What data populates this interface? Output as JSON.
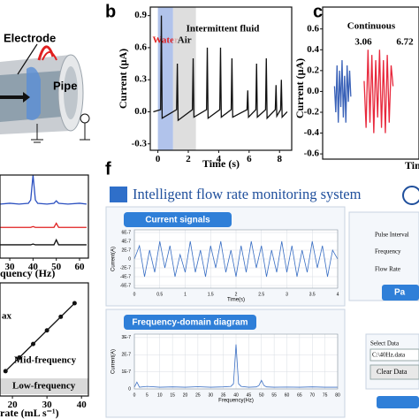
{
  "diagram": {
    "labels": [
      "Electrode",
      "Pipe"
    ]
  },
  "app": {
    "panel": "f",
    "title": "Intelligent flow rate monitoring system",
    "fields": [
      "Pulse Interval",
      "Frequency",
      "Flow Rate"
    ],
    "button": "Pa",
    "select_label": "Select Data",
    "file": "C:\\40Hz.data",
    "clear": "Clear Data",
    "headers": [
      "Current signals",
      "Frequency-domain diagram"
    ]
  },
  "chart_data": [
    {
      "type": "line",
      "panel": "b",
      "title": "Intermittent fluid",
      "xlabel": "Time (s)",
      "ylabel": "Current (μA)",
      "xlim": [
        -0.5,
        8.8
      ],
      "ylim": [
        -0.36,
        0.98
      ],
      "xticks": [
        0,
        2,
        4,
        6,
        8
      ],
      "yticks": [
        0.9,
        0.6,
        0.3,
        {
          "value": 0,
          "label": "0.0"
        },
        -0.3
      ],
      "regions": [
        {
          "label": "Water",
          "range": [
            0,
            1
          ],
          "color": "#9db4e6",
          "text_color": "#e02020"
        },
        {
          "label": "Air",
          "range": [
            1,
            2.5
          ],
          "color": "#d6d6d6",
          "text_color": "#111111"
        }
      ],
      "series": [
        {
          "color": "#111111",
          "x": [
            -0.3,
            0.18,
            0.23,
            0.28,
            1.23,
            1.28,
            1.33,
            2.27,
            2.32,
            2.37,
            3.2,
            3.25,
            3.3,
            4.07,
            4.12,
            4.17,
            4.82,
            4.87,
            4.92,
            5.86,
            5.91,
            5.96,
            6.44,
            6.49,
            6.54,
            7.08,
            7.13,
            7.18,
            7.72,
            7.77,
            7.82,
            8.07,
            8.12,
            8.17,
            8.5
          ],
          "values": [
            0,
            0.02,
            0.9,
            -0.06,
            0.02,
            0.45,
            -0.08,
            0.02,
            0.5,
            -0.05,
            0.02,
            0.6,
            -0.06,
            0.02,
            0.6,
            -0.05,
            0.02,
            0.5,
            -0.05,
            0.02,
            0.2,
            -0.05,
            0.02,
            0.45,
            -0.05,
            0.02,
            0.5,
            -0.06,
            0.02,
            0.25,
            -0.04,
            0.02,
            0.3,
            -0.05,
            0
          ]
        }
      ]
    },
    {
      "type": "line",
      "panel": "c",
      "title": "Continuous",
      "xlabel": "Time",
      "ylabel": "Current (μA)",
      "xlim": [
        0,
        1.3
      ],
      "ylim": [
        -0.65,
        0.81
      ],
      "yticks": [
        0.6,
        0.4,
        0.2,
        {
          "value": 0,
          "label": "0.0"
        },
        -0.2,
        -0.4,
        -0.6
      ],
      "annotations": [
        "3.06",
        "6.72"
      ],
      "series": [
        {
          "color": "#3a62b8",
          "x": [
            0.16,
            0.177,
            0.194,
            0.211,
            0.228,
            0.245,
            0.262,
            0.279,
            0.296,
            0.313,
            0.33,
            0.347,
            0.364,
            0.38
          ],
          "values": [
            0.05,
            -0.2,
            0.25,
            -0.3,
            0.2,
            -0.15,
            0.3,
            -0.25,
            0.15,
            -0.3,
            0.25,
            -0.1,
            0.2,
            -0.05
          ]
        },
        {
          "color": "#e8283c",
          "x": [
            0.56,
            0.586,
            0.612,
            0.638,
            0.664,
            0.69,
            0.716,
            0.742,
            0.768,
            0.794,
            0.82,
            0.846,
            0.872,
            0.898,
            0.924,
            0.95
          ],
          "values": [
            0.1,
            -0.35,
            0.4,
            -0.3,
            0.35,
            -0.4,
            0.3,
            -0.25,
            0.4,
            -0.35,
            0.3,
            -0.4,
            0.35,
            -0.3,
            0.25,
            0.05
          ]
        }
      ]
    },
    {
      "type": "line",
      "xlabel": "quency (Hz)",
      "xlim": [
        25.8,
        63.8
      ],
      "ylim": [
        0,
        10
      ],
      "xticks": [
        30,
        40,
        50,
        60
      ],
      "series": [
        {
          "color": "#2a4fc0",
          "x": [
            26,
            30,
            34,
            38,
            39,
            40,
            41,
            42,
            46,
            49,
            50,
            51,
            55,
            60,
            63
          ],
          "values": [
            6.5,
            6.6,
            6.5,
            6.6,
            7,
            10,
            7,
            6.6,
            6.5,
            6.6,
            6.9,
            6.6,
            6.5,
            6.6,
            6.5
          ]
        },
        {
          "color": "#e02020",
          "x": [
            26,
            30,
            34,
            38,
            39,
            40,
            41,
            42,
            46,
            49,
            50,
            51,
            55,
            60,
            63
          ],
          "values": [
            3.7,
            3.7,
            3.7,
            3.7,
            3.7,
            3.8,
            3.7,
            3.7,
            3.7,
            3.7,
            4.2,
            3.7,
            3.7,
            3.7,
            3.7
          ]
        },
        {
          "color": "#111111",
          "x": [
            26,
            30,
            34,
            38,
            39,
            40,
            41,
            42,
            46,
            49,
            50,
            51,
            55,
            60,
            63
          ],
          "values": [
            1.6,
            1.6,
            1.6,
            1.6,
            1.6,
            1.7,
            1.6,
            1.6,
            1.6,
            1.6,
            2.2,
            1.6,
            1.6,
            1.6,
            1.6
          ]
        }
      ]
    },
    {
      "type": "line",
      "markers": true,
      "xlabel": "rate (mL s⁻¹)",
      "xlim": [
        16.4,
        42
      ],
      "ylim": [
        0,
        100
      ],
      "xticks": [
        20,
        30,
        40
      ],
      "annotations": [
        "ax",
        "Mid-frequency",
        "Low-frequency"
      ],
      "series": [
        {
          "color": "#111111",
          "x": [
            18,
            22,
            26,
            30,
            34,
            38
          ],
          "values": [
            22,
            34,
            46,
            58,
            70,
            82
          ]
        }
      ]
    },
    {
      "type": "line",
      "grid": true,
      "xlabel": "Time(s)",
      "ylabel": "Current(A)",
      "xlim": [
        0,
        4
      ],
      "ylim": [
        -6.6e-07,
        6.6e-07
      ],
      "xticks": [
        0,
        0.5,
        1,
        1.5,
        2,
        2.5,
        3,
        3.5,
        4
      ],
      "yticks": [
        {
          "value": 6e-07,
          "label": "6E-7"
        },
        {
          "value": 4e-07,
          "label": "4E-7"
        },
        {
          "value": 2e-07,
          "label": "2E-7"
        },
        0,
        {
          "value": -2e-07,
          "label": "-2E-7"
        },
        {
          "value": -4e-07,
          "label": "-4E-7"
        },
        {
          "value": -6e-07,
          "label": "-6E-7"
        }
      ],
      "series": [
        {
          "color": "#3a6fc4",
          "x": [
            0,
            0.1,
            0.2,
            0.3,
            0.4,
            0.5,
            0.6,
            0.7,
            0.8,
            0.9,
            1,
            1.1,
            1.2,
            1.3,
            1.4,
            1.5,
            1.6,
            1.7,
            1.8,
            1.9,
            2,
            2.1,
            2.2,
            2.3,
            2.4,
            2.5,
            2.6,
            2.7,
            2.8,
            2.9,
            3,
            3.1,
            3.2,
            3.3,
            3.4,
            3.5,
            3.6,
            3.7,
            3.8,
            3.9,
            4
          ],
          "values": [
            0,
            3e-07,
            -4e-07,
            2e-07,
            -3e-07,
            4e-07,
            -2e-07,
            3e-07,
            -4e-07,
            1e-07,
            -3e-07,
            4e-07,
            -3e-07,
            2e-07,
            -4e-07,
            3e-07,
            -2e-07,
            4e-07,
            -3e-07,
            2e-07,
            -4e-07,
            3e-07,
            -3e-07,
            4e-07,
            -2e-07,
            3e-07,
            -4e-07,
            2e-07,
            -3e-07,
            4e-07,
            -3e-07,
            3e-07,
            -4e-07,
            2e-07,
            -3e-07,
            4e-07,
            -2e-07,
            3e-07,
            -4e-07,
            2e-07,
            0
          ]
        }
      ]
    },
    {
      "type": "line",
      "grid": true,
      "xlabel": "Frequency(Hz)",
      "ylabel": "Current(A)",
      "xlim": [
        0,
        80
      ],
      "ylim": [
        0,
        3.2e-07
      ],
      "xticks": [
        0,
        5,
        10,
        15,
        20,
        25,
        30,
        35,
        40,
        45,
        50,
        55,
        60,
        65,
        70,
        75,
        80
      ],
      "yticks": [
        {
          "value": 3e-07,
          "label": "3E-7"
        },
        {
          "value": 2e-07,
          "label": "2E-7"
        },
        {
          "value": 1e-07,
          "label": "1E-7"
        },
        0
      ],
      "series": [
        {
          "color": "#3a6fc4",
          "x": [
            0,
            1,
            2,
            5,
            10,
            15,
            20,
            25,
            30,
            35,
            38,
            39,
            40,
            41,
            42,
            45,
            48,
            49,
            50,
            51,
            52,
            55,
            60,
            65,
            70,
            75,
            80
          ],
          "values": [
            1e-08,
            4e-08,
            1e-08,
            1.5e-08,
            1e-08,
            1.2e-08,
            1e-08,
            1.3e-08,
            1e-08,
            1.2e-08,
            1.5e-08,
            3e-08,
            2.6e-07,
            3e-08,
            1.5e-08,
            1e-08,
            1.2e-08,
            2e-08,
            5e-08,
            2e-08,
            1.2e-08,
            1e-08,
            1.1e-08,
            1e-08,
            1.2e-08,
            1e-08,
            1e-08
          ]
        }
      ]
    }
  ]
}
